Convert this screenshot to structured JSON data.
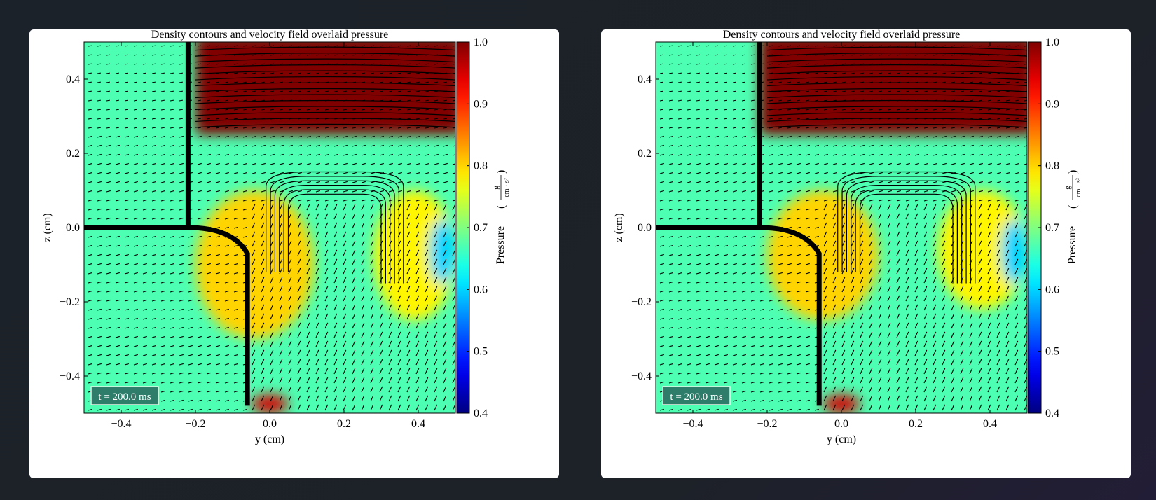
{
  "chart_data": [
    {
      "type": "heatmap",
      "title": "Density contours and velocity field overlaid pressure",
      "xlabel": "y  (cm)",
      "ylabel": "z  (cm)",
      "xlim": [
        -0.5,
        0.5
      ],
      "ylim": [
        -0.5,
        0.5
      ],
      "xticks": [
        -0.4,
        -0.2,
        0.0,
        0.2,
        0.4
      ],
      "xtick_labels": [
        "−0.4",
        "−0.2",
        "0.0",
        "0.2",
        "0.4"
      ],
      "yticks": [
        -0.4,
        -0.2,
        0.0,
        0.2,
        0.4
      ],
      "ytick_labels": [
        "−0.4",
        "−0.2",
        "0.0",
        "0.2",
        "0.4"
      ],
      "colorbar": {
        "label": "Pressure",
        "unit_numerator": "g",
        "unit_denominator": "cm · s²",
        "range": [
          0.4,
          1.0
        ],
        "ticks": [
          0.4,
          0.5,
          0.6,
          0.7,
          0.8,
          0.9,
          1.0
        ],
        "tick_labels": [
          "0.4",
          "0.5",
          "0.6",
          "0.7",
          "0.8",
          "0.9",
          "1.0"
        ],
        "colormap": "jet"
      },
      "annotation": "t = 200.0 ms",
      "background_pressure": 0.67,
      "regions": [
        {
          "name": "high-pressure-region",
          "y": [
            -0.2,
            0.5
          ],
          "z": [
            0.25,
            0.5
          ],
          "pressure": 1.0
        },
        {
          "name": "mid-left-lobe",
          "y": [
            -0.2,
            0.12
          ],
          "z": [
            -0.3,
            0.1
          ],
          "pressure": 0.8
        },
        {
          "name": "mid-right-lobe",
          "y": [
            0.28,
            0.5
          ],
          "z": [
            -0.25,
            0.1
          ],
          "pressure": 0.78
        },
        {
          "name": "low-pressure-pocket",
          "y": [
            0.43,
            0.5
          ],
          "z": [
            -0.15,
            0.02
          ],
          "pressure": 0.6
        },
        {
          "name": "bottom-hotspot",
          "y": [
            -0.05,
            0.05
          ],
          "z": [
            -0.5,
            -0.45
          ],
          "pressure": 0.95
        }
      ]
    },
    {
      "type": "heatmap",
      "title": "Density contours and velocity field overlaid pressure",
      "xlabel": "y  (cm)",
      "ylabel": "z  (cm)",
      "xlim": [
        -0.5,
        0.5
      ],
      "ylim": [
        -0.5,
        0.5
      ],
      "xticks": [
        -0.4,
        -0.2,
        0.0,
        0.2,
        0.4
      ],
      "xtick_labels": [
        "−0.4",
        "−0.2",
        "0.0",
        "0.2",
        "0.4"
      ],
      "yticks": [
        -0.4,
        -0.2,
        0.0,
        0.2,
        0.4
      ],
      "ytick_labels": [
        "−0.4",
        "−0.2",
        "0.0",
        "0.2",
        "0.4"
      ],
      "colorbar": {
        "label": "Pressure",
        "unit_numerator": "g",
        "unit_denominator": "cm · s²",
        "range": [
          0.4,
          1.0
        ],
        "ticks": [
          0.4,
          0.5,
          0.6,
          0.7,
          0.8,
          0.9,
          1.0
        ],
        "tick_labels": [
          "0.4",
          "0.5",
          "0.6",
          "0.7",
          "0.8",
          "0.9",
          "1.0"
        ],
        "colormap": "jet"
      },
      "annotation": "t = 200.0 ms",
      "background_pressure": 0.67,
      "regions": [
        {
          "name": "high-pressure-region",
          "y": [
            -0.22,
            0.5
          ],
          "z": [
            0.25,
            0.5
          ],
          "pressure": 1.0
        },
        {
          "name": "mid-left-lobe",
          "y": [
            -0.2,
            0.1
          ],
          "z": [
            -0.25,
            0.1
          ],
          "pressure": 0.8
        },
        {
          "name": "mid-right-lobe",
          "y": [
            0.26,
            0.5
          ],
          "z": [
            -0.22,
            0.1
          ],
          "pressure": 0.78
        },
        {
          "name": "low-pressure-pocket",
          "y": [
            0.43,
            0.5
          ],
          "z": [
            -0.15,
            0.02
          ],
          "pressure": 0.6
        },
        {
          "name": "bottom-hotspot",
          "y": [
            -0.05,
            0.05
          ],
          "z": [
            -0.5,
            -0.45
          ],
          "pressure": 0.95
        }
      ]
    }
  ]
}
